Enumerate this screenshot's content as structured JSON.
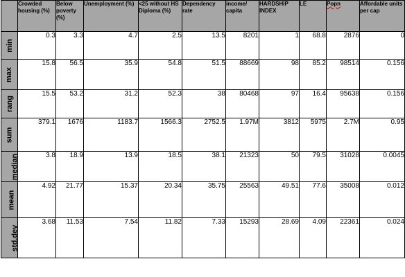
{
  "table": {
    "columns": [
      "Crowded housing (%)",
      "Below poverty (%)",
      "Unemployment (%)",
      "<25 without HS Diploma (%)",
      "Dependency rate",
      "income/ capita",
      "HARDSHIP INDEX",
      "LE",
      "Popn",
      "Affordable units per cap"
    ],
    "rows": [
      {
        "label": "min",
        "values": [
          "0.3",
          "3.3",
          "4.7",
          "2.5",
          "13.5",
          "8201",
          "1",
          "68.8",
          "2876",
          "0"
        ]
      },
      {
        "label": "max",
        "values": [
          "15.8",
          "56.5",
          "35.9",
          "54.8",
          "51.5",
          "88669",
          "98",
          "85.2",
          "98514",
          "0.156"
        ]
      },
      {
        "label": "rang",
        "values": [
          "15.5",
          "53.2",
          "31.2",
          "52.3",
          "38",
          "80468",
          "97",
          "16.4",
          "95638",
          "0.156"
        ]
      },
      {
        "label": "sum",
        "values": [
          "379.1",
          "1676",
          "1183.7",
          "1566.3",
          "2752.5",
          "1.97M",
          "3812",
          "5975",
          "2.7M",
          "0.95"
        ]
      },
      {
        "label": "median",
        "values": [
          "3.8",
          "18.9",
          "13.9",
          "18.5",
          "38.1",
          "21323",
          "50",
          "79.5",
          "31028",
          "0.0045"
        ]
      },
      {
        "label": "mean",
        "values": [
          "4.92",
          "21.77",
          "15.37",
          "20.34",
          "35.75",
          "25563",
          "49.51",
          "77.6",
          "35008",
          "0.012"
        ]
      },
      {
        "label": "std.dev",
        "values": [
          "3.68",
          "11.53",
          "7.54",
          "11.82",
          "7.33",
          "15293",
          "28.69",
          "4.09",
          "22361",
          "0.024"
        ]
      }
    ]
  }
}
